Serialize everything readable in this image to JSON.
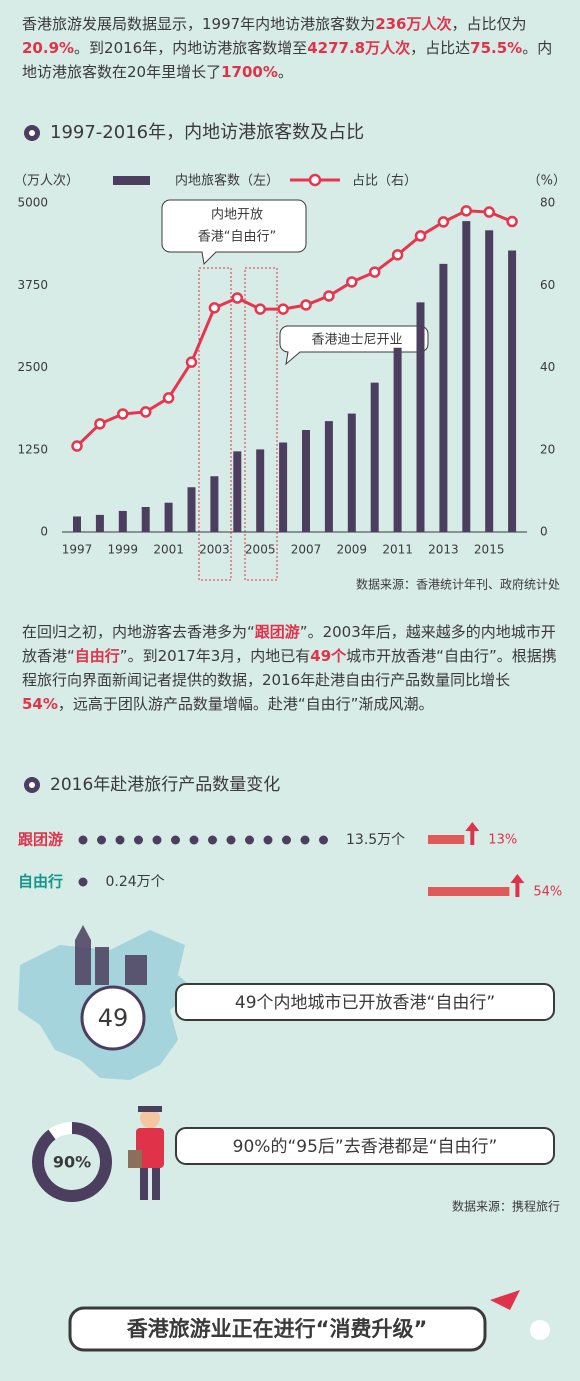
{
  "intro": [
    "香港旅游发展局数据显示，1997年内地访港旅客数为",
    "236万人次",
    "，占比仅为",
    "20.9%",
    "。到2016年，内地访港旅客数增至",
    "4277.8万人次",
    "，占比达",
    "75.5%",
    "。内地访港旅客数在20年里增长了",
    "1700%",
    "。"
  ],
  "chart_data": {
    "type": "bar",
    "title": "1997-2016年，内地访港旅客数及占比",
    "y_label": "（万人次）",
    "y2_label": "（%）",
    "categories": [
      "1997",
      null,
      "1999",
      null,
      "2001",
      null,
      "2003",
      null,
      "2005",
      null,
      "2007",
      null,
      "2009",
      null,
      "2011",
      null,
      "2013",
      null,
      "2015",
      null
    ],
    "series": [
      {
        "name": "内地旅客数（左）",
        "color": "#4b3e5e",
        "values": [
          236,
          260,
          320,
          380,
          445,
          680,
          847,
          1225,
          1255,
          1360,
          1550,
          1685,
          1800,
          2270,
          2800,
          3490,
          4075,
          4725,
          4585,
          4277.8
        ]
      },
      {
        "name": "占比（右）",
        "type": "line",
        "axis": "y2",
        "color": "#e8344d",
        "values": [
          20.9,
          26.3,
          28.7,
          29.2,
          32.6,
          41.3,
          54.5,
          56.9,
          54.2,
          54.2,
          55.2,
          57.4,
          60.8,
          63.2,
          67.4,
          72,
          75.4,
          78.1,
          77.8,
          75.5
        ]
      }
    ],
    "ylim": [
      0,
      5000
    ],
    "yticks": [
      0,
      1250,
      2500,
      3750,
      5000
    ],
    "y2lim": [
      0,
      80
    ],
    "y2ticks": [
      0,
      20,
      40,
      60,
      80
    ],
    "annotations": [
      [
        "内地开放",
        "香港“自由行”"
      ],
      [
        "香港迪士尼开业"
      ]
    ],
    "source": "数据来源：香港统计年刊、政府统计处"
  },
  "para2": [
    "在回归之初，内地游客去香港多为“",
    "跟团游",
    "”。2003年后，越来越多的内地城市开放香港“",
    "自由行",
    "”。到2017年3月，内地已有",
    "49个",
    "城市开放香港“自由行”。根据携程旅行向界面新闻记者提供的数据，2016年赴港自由行产品数量同比增长",
    "54%",
    "，远高于团队游产品数量增幅。赴港“自由行”渐成风潮。"
  ],
  "products": {
    "title": "2016年赴港旅行产品数量变化",
    "items": [
      {
        "name": "跟团游",
        "color": "#e0334a",
        "value": 13.5,
        "label": "13.5万个",
        "growth": 13,
        "growth_label": "13%"
      },
      {
        "name": "自由行",
        "color": "#14958a",
        "value": 0.24,
        "label": "0.24万个",
        "growth": 54,
        "growth_label": "54%"
      }
    ]
  },
  "cities": {
    "value": 49,
    "text": "49个内地城市已开放香港“自由行”"
  },
  "post95": {
    "value": 90,
    "label": "90%",
    "text": "90%的“95后”去香港都是“自由行”"
  },
  "source2": "数据来源：携程旅行",
  "banner": "香港旅游业正在进行“消费升级”"
}
